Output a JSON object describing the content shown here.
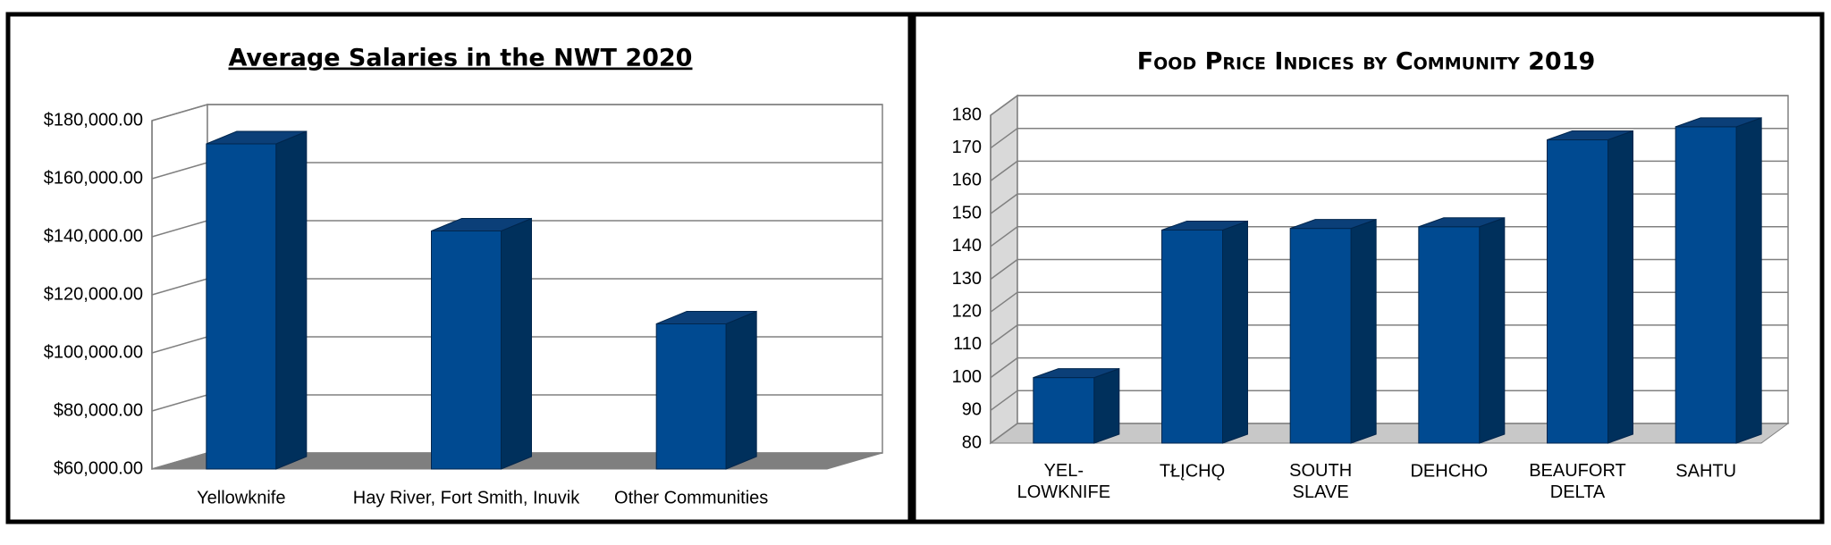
{
  "chart_data": [
    {
      "type": "bar",
      "title": "Average Salaries in the NWT 2020",
      "categories": [
        "Yellowknife",
        "Hay River, Fort Smith, Inuvik",
        "Other Communities"
      ],
      "values": [
        172000,
        142000,
        110000
      ],
      "color": "#004a91",
      "ylim": [
        60000,
        180000
      ],
      "yticks": [
        {
          "value": 60000,
          "label": "$60,000.00"
        },
        {
          "value": 80000,
          "label": "$80,000.00"
        },
        {
          "value": 100000,
          "label": "$100,000.00"
        },
        {
          "value": 120000,
          "label": "$120,000.00"
        },
        {
          "value": 140000,
          "label": "$140,000.00"
        },
        {
          "value": 160000,
          "label": "$160,000.00"
        },
        {
          "value": 180000,
          "label": "$180,000.00"
        }
      ],
      "grid": true
    },
    {
      "type": "bar",
      "title": "Food Price Indices by Community 2019",
      "categories": [
        "YEL-\nLOWKNIFE",
        "TŁĮCHǪ",
        "SOUTH\nSLAVE",
        "DEHCHO",
        "BEAUFORT\nDELTA",
        "SAHTU"
      ],
      "values": [
        100,
        145,
        145.5,
        146,
        172.5,
        176.5
      ],
      "color": "#004a91",
      "ylim": [
        80,
        180
      ],
      "yticks": [
        80,
        90,
        100,
        110,
        120,
        130,
        140,
        150,
        160,
        170,
        180
      ],
      "grid": true
    }
  ]
}
